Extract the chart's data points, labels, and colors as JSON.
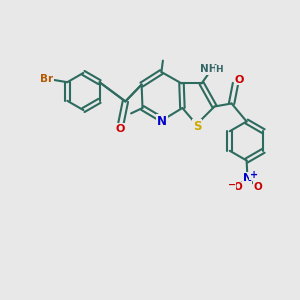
{
  "bg_color": "#e8e8e8",
  "bond_color": "#2d6b5e",
  "bond_width": 1.5,
  "atom_colors": {
    "Br": "#b35900",
    "O": "#cc0000",
    "N": "#0000cc",
    "S": "#ccaa00",
    "NH": "#336666",
    "H_color": "#336666",
    "C": "#2d6b5e",
    "plus": "#0000cc",
    "minus": "#cc0000"
  }
}
